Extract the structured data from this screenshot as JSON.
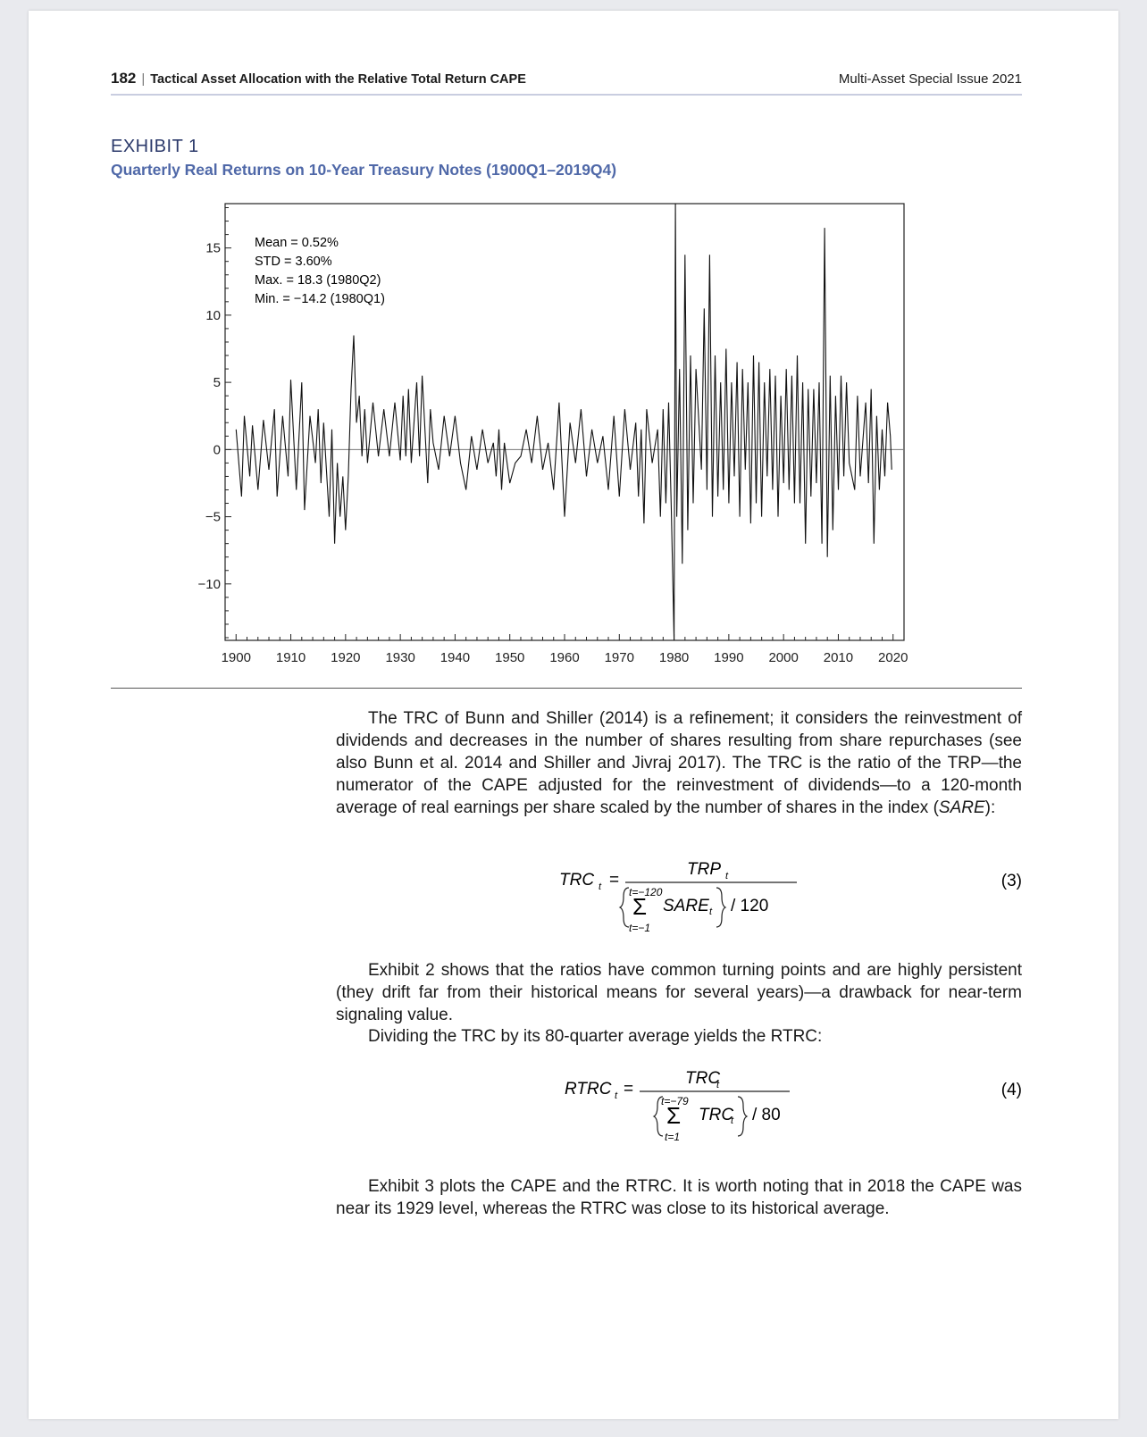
{
  "header": {
    "page_number": "182",
    "running_title": "Tactical Asset Allocation with the Relative Total Return CAPE",
    "issue": "Multi-Asset Special Issue 2021"
  },
  "exhibit": {
    "label": "EXHIBIT 1",
    "title": "Quarterly Real Returns on 10-Year Treasury Notes (1900Q1–2019Q4)"
  },
  "chart_data": {
    "type": "line",
    "title": "Quarterly Real Returns on 10-Year Treasury Notes (1900Q1–2019Q4)",
    "xlabel": "",
    "ylabel": "",
    "xlim": [
      1898,
      2022
    ],
    "ylim": [
      -14.2,
      18.3
    ],
    "x_ticks": [
      "1900",
      "1910",
      "1920",
      "1930",
      "1940",
      "1950",
      "1960",
      "1970",
      "1980",
      "1990",
      "2000",
      "2010",
      "2020"
    ],
    "y_ticks": [
      "15",
      "10",
      "5",
      "0",
      "−5",
      "−10"
    ],
    "zero_line": true,
    "annotations": [
      "Mean = 0.52%",
      "STD = 3.60%",
      "Max. = 18.3 (1980Q2)",
      "Min. = −14.2 (1980Q1)"
    ],
    "series": [
      {
        "points": [
          [
            1900.0,
            1.5
          ],
          [
            1901.0,
            -3.5
          ],
          [
            1901.5,
            2.5
          ],
          [
            1902.5,
            -2.0
          ],
          [
            1903.0,
            1.8
          ],
          [
            1904.0,
            -3.0
          ],
          [
            1905.0,
            2.2
          ],
          [
            1906.0,
            -1.5
          ],
          [
            1907.0,
            3.0
          ],
          [
            1907.5,
            -3.5
          ],
          [
            1908.5,
            2.5
          ],
          [
            1909.5,
            -2.0
          ],
          [
            1910.0,
            5.2
          ],
          [
            1911.0,
            -3.0
          ],
          [
            1912.0,
            5.0
          ],
          [
            1912.5,
            -4.5
          ],
          [
            1913.5,
            2.5
          ],
          [
            1914.5,
            -1.0
          ],
          [
            1915.0,
            3.0
          ],
          [
            1915.5,
            -2.5
          ],
          [
            1916.0,
            2.0
          ],
          [
            1916.5,
            -1.5
          ],
          [
            1917.0,
            -5.0
          ],
          [
            1917.5,
            1.5
          ],
          [
            1918.0,
            -7.0
          ],
          [
            1918.5,
            -1.0
          ],
          [
            1919.0,
            -5.0
          ],
          [
            1919.5,
            -2.0
          ],
          [
            1920.0,
            -6.0
          ],
          [
            1920.5,
            -2.0
          ],
          [
            1921.0,
            4.5
          ],
          [
            1921.5,
            8.5
          ],
          [
            1922.0,
            2.0
          ],
          [
            1922.5,
            4.0
          ],
          [
            1923.0,
            -0.5
          ],
          [
            1923.5,
            3.0
          ],
          [
            1924.0,
            -1.0
          ],
          [
            1925.0,
            3.5
          ],
          [
            1926.0,
            -0.5
          ],
          [
            1927.0,
            3.0
          ],
          [
            1928.0,
            -0.5
          ],
          [
            1929.0,
            3.5
          ],
          [
            1930.0,
            -0.8
          ],
          [
            1930.5,
            4.0
          ],
          [
            1931.0,
            -0.5
          ],
          [
            1931.5,
            4.5
          ],
          [
            1932.0,
            -1.0
          ],
          [
            1933.0,
            5.0
          ],
          [
            1933.5,
            -0.5
          ],
          [
            1934.0,
            5.5
          ],
          [
            1935.0,
            -2.5
          ],
          [
            1935.5,
            3.0
          ],
          [
            1936.0,
            0.5
          ],
          [
            1937.0,
            -1.5
          ],
          [
            1938.0,
            2.5
          ],
          [
            1939.0,
            -0.5
          ],
          [
            1940.0,
            2.5
          ],
          [
            1941.0,
            -1.0
          ],
          [
            1942.0,
            -3.0
          ],
          [
            1943.0,
            1.0
          ],
          [
            1944.0,
            -1.5
          ],
          [
            1945.0,
            1.5
          ],
          [
            1946.0,
            -1.0
          ],
          [
            1947.0,
            0.5
          ],
          [
            1947.5,
            -2.0
          ],
          [
            1948.0,
            1.5
          ],
          [
            1948.5,
            -3.0
          ],
          [
            1949.0,
            0.5
          ],
          [
            1950.0,
            -2.5
          ],
          [
            1951.0,
            -1.0
          ],
          [
            1952.0,
            -0.5
          ],
          [
            1953.0,
            1.5
          ],
          [
            1954.0,
            -1.0
          ],
          [
            1955.0,
            2.5
          ],
          [
            1956.0,
            -1.5
          ],
          [
            1957.0,
            0.5
          ],
          [
            1958.0,
            -3.0
          ],
          [
            1959.0,
            3.5
          ],
          [
            1960.0,
            -5.0
          ],
          [
            1961.0,
            2.0
          ],
          [
            1962.0,
            -1.0
          ],
          [
            1963.0,
            3.0
          ],
          [
            1964.0,
            -2.0
          ],
          [
            1965.0,
            1.5
          ],
          [
            1966.0,
            -1.0
          ],
          [
            1967.0,
            1.0
          ],
          [
            1968.0,
            -3.0
          ],
          [
            1969.0,
            2.5
          ],
          [
            1970.0,
            -3.5
          ],
          [
            1971.0,
            3.0
          ],
          [
            1972.0,
            -1.5
          ],
          [
            1973.0,
            2.0
          ],
          [
            1973.5,
            -3.5
          ],
          [
            1974.0,
            1.5
          ],
          [
            1974.5,
            -5.5
          ],
          [
            1975.0,
            3.0
          ],
          [
            1976.0,
            -1.0
          ],
          [
            1977.0,
            1.5
          ],
          [
            1977.5,
            -5.0
          ],
          [
            1978.0,
            3.0
          ],
          [
            1978.5,
            -4.0
          ],
          [
            1979.0,
            3.5
          ],
          [
            1979.5,
            -4.5
          ],
          [
            1980.0,
            -14.2
          ],
          [
            1980.25,
            18.3
          ],
          [
            1980.5,
            -5.0
          ],
          [
            1981.0,
            6.0
          ],
          [
            1981.5,
            -8.5
          ],
          [
            1982.0,
            14.5
          ],
          [
            1982.5,
            -6.0
          ],
          [
            1983.0,
            7.0
          ],
          [
            1983.5,
            -4.0
          ],
          [
            1984.0,
            6.0
          ],
          [
            1985.0,
            -1.5
          ],
          [
            1985.5,
            10.5
          ],
          [
            1986.0,
            -3.0
          ],
          [
            1986.5,
            14.5
          ],
          [
            1987.0,
            -5.0
          ],
          [
            1987.5,
            7.0
          ],
          [
            1988.0,
            -3.5
          ],
          [
            1988.5,
            5.0
          ],
          [
            1989.0,
            -3.0
          ],
          [
            1989.5,
            7.5
          ],
          [
            1990.0,
            -4.0
          ],
          [
            1990.5,
            5.0
          ],
          [
            1991.0,
            -2.0
          ],
          [
            1991.5,
            6.5
          ],
          [
            1992.0,
            -5.0
          ],
          [
            1992.5,
            6.0
          ],
          [
            1993.0,
            -1.5
          ],
          [
            1993.5,
            5.0
          ],
          [
            1994.0,
            -5.5
          ],
          [
            1994.5,
            7.0
          ],
          [
            1995.0,
            -4.0
          ],
          [
            1995.5,
            6.5
          ],
          [
            1996.0,
            -5.0
          ],
          [
            1996.5,
            5.0
          ],
          [
            1997.0,
            -2.0
          ],
          [
            1997.5,
            6.0
          ],
          [
            1998.0,
            -3.0
          ],
          [
            1998.5,
            5.5
          ],
          [
            1999.0,
            -5.0
          ],
          [
            1999.5,
            4.0
          ],
          [
            2000.0,
            -2.5
          ],
          [
            2000.5,
            6.0
          ],
          [
            2001.0,
            -3.0
          ],
          [
            2001.5,
            5.5
          ],
          [
            2002.0,
            -4.0
          ],
          [
            2002.5,
            7.0
          ],
          [
            2003.0,
            -4.0
          ],
          [
            2003.5,
            5.0
          ],
          [
            2004.0,
            -7.0
          ],
          [
            2004.5,
            4.5
          ],
          [
            2005.0,
            -3.5
          ],
          [
            2005.5,
            4.5
          ],
          [
            2006.0,
            -2.5
          ],
          [
            2006.5,
            5.0
          ],
          [
            2007.0,
            -7.0
          ],
          [
            2007.5,
            16.5
          ],
          [
            2008.0,
            -8.0
          ],
          [
            2008.5,
            5.5
          ],
          [
            2009.0,
            -6.0
          ],
          [
            2009.5,
            4.0
          ],
          [
            2010.0,
            -3.0
          ],
          [
            2010.5,
            5.5
          ],
          [
            2011.0,
            -2.0
          ],
          [
            2011.5,
            5.0
          ],
          [
            2012.0,
            -1.0
          ],
          [
            2013.0,
            -3.0
          ],
          [
            2013.5,
            4.0
          ],
          [
            2014.0,
            -2.0
          ],
          [
            2015.0,
            3.5
          ],
          [
            2015.5,
            -2.5
          ],
          [
            2016.0,
            4.5
          ],
          [
            2016.5,
            -7.0
          ],
          [
            2017.0,
            2.5
          ],
          [
            2017.5,
            -3.0
          ],
          [
            2018.0,
            1.5
          ],
          [
            2018.5,
            -2.0
          ],
          [
            2019.0,
            3.5
          ],
          [
            2019.5,
            1.0
          ],
          [
            2019.75,
            -1.5
          ]
        ]
      }
    ]
  },
  "body": {
    "para1": "The TRC of Bunn and Shiller (2014) is a refinement; it considers the reinvestment of dividends and decreases in the number of shares resulting from share repurchases (see also Bunn et al. 2014 and Shiller and Jivraj 2017). The TRC is the ratio of the TRP—the numerator of the CAPE adjusted for the reinvestment of dividends—to a 120-month average of real earnings per share scaled by the number of shares in the index (",
    "para1_italic": "SARE",
    "para1_end": "):",
    "para2": "Exhibit 2 shows that the ratios have common turning points and are highly persistent (they drift far from their historical means for several years)—a drawback for near-term signaling value.",
    "para3": "Dividing the TRC by its 80-quarter average yields the RTRC:",
    "para4": "Exhibit 3 plots the CAPE and the RTRC. It is worth noting that in 2018 the CAPE was near its 1929 level, whereas the RTRC was close to its historical average."
  },
  "equations": {
    "eq3": {
      "lhs": "TRC",
      "sub": "t",
      "numerator": "TRP",
      "num_sub": "t",
      "sum_top": "t=−120",
      "sum_bottom": "t=−1",
      "term": "SARE",
      "term_sub": "t",
      "divisor": "/ 120",
      "number": "(3)"
    },
    "eq4": {
      "lhs": "RTRC",
      "sub": "t",
      "numerator": "TRC",
      "num_sub": "t",
      "sum_top": "t=−79",
      "sum_bottom": "t=1",
      "term": "TRC",
      "term_sub": "t",
      "divisor": "/ 80",
      "number": "(4)"
    }
  }
}
